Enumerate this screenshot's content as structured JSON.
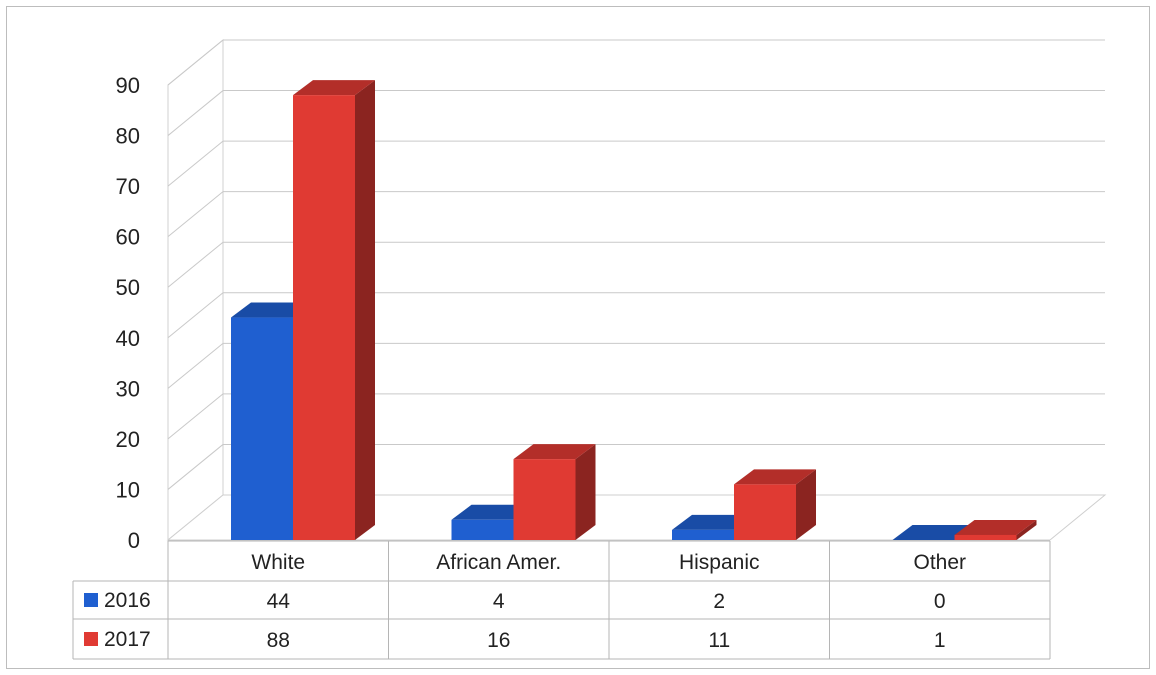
{
  "chart_data": {
    "type": "bar",
    "categories": [
      "White",
      "African Amer.",
      "Hispanic",
      "Other"
    ],
    "series": [
      {
        "name": "2016",
        "values": [
          44,
          4,
          2,
          0
        ],
        "color": "#1f5fd0"
      },
      {
        "name": "2017",
        "values": [
          88,
          16,
          11,
          1
        ],
        "color": "#e03a33"
      }
    ],
    "y_ticks": [
      "0",
      "10",
      "20",
      "30",
      "40",
      "50",
      "60",
      "70",
      "80",
      "90"
    ],
    "ylim": [
      0,
      90
    ],
    "grid": true,
    "legend": "data-table-left",
    "title": "",
    "xlabel": "",
    "ylabel": ""
  }
}
